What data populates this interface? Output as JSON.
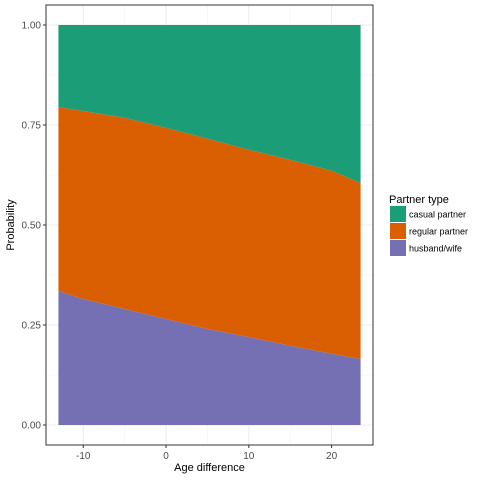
{
  "chart_data": {
    "type": "area",
    "stacked": true,
    "xlabel": "Age difference",
    "ylabel": "Probability",
    "xlim": [
      -14.5,
      25
    ],
    "ylim": [
      -0.05,
      1.05
    ],
    "x_ticks": [
      -10,
      0,
      10,
      20
    ],
    "x_tick_labels": [
      "-10",
      "0",
      "10",
      "20"
    ],
    "y_ticks": [
      0,
      0.25,
      0.5,
      0.75,
      1
    ],
    "y_tick_labels": [
      "0.00",
      "0.25",
      "0.50",
      "0.75",
      "1.00"
    ],
    "grid": true,
    "legend": {
      "title": "Partner type",
      "position": "right",
      "entries": [
        "casual partner",
        "regular partner",
        "husband/wife"
      ]
    },
    "x": [
      -13,
      -10,
      -5,
      0,
      5,
      10,
      15,
      20,
      23.5
    ],
    "series": [
      {
        "name": "husband/wife",
        "color": "#7570b3",
        "values": [
          0.335,
          0.315,
          0.29,
          0.265,
          0.24,
          0.22,
          0.198,
          0.178,
          0.165
        ]
      },
      {
        "name": "regular partner",
        "color": "#d95f02",
        "values": [
          0.46,
          0.47,
          0.478,
          0.478,
          0.476,
          0.468,
          0.465,
          0.458,
          0.44
        ]
      },
      {
        "name": "casual partner",
        "color": "#1b9e77",
        "values": [
          0.205,
          0.215,
          0.232,
          0.257,
          0.284,
          0.312,
          0.337,
          0.364,
          0.395
        ]
      }
    ]
  }
}
